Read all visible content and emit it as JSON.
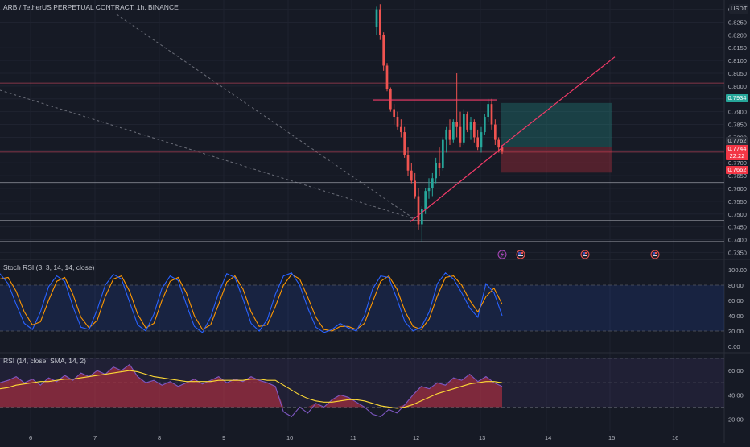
{
  "header": {
    "symbol_title": "ARB / TetherUS PERPETUAL CONTRACT, 1h, BINANCE",
    "currency": "USDT"
  },
  "price_tags": {
    "target": "0.7934",
    "last": "0.7762",
    "current": "0.7744",
    "countdown": "22:22",
    "stop": "0.7662"
  },
  "colors": {
    "background": "#161a25",
    "up": "#26a69a",
    "down": "#ef5350",
    "trendline": "#f23a68",
    "stoch_k": "#2962ff",
    "stoch_d": "#ff9800",
    "rsi_line": "#7e57c2",
    "rsi_ma": "#fdd835"
  },
  "event_icons": [
    "lightning-icon",
    "flag-us-icon",
    "flag-us-icon",
    "flag-us-icon"
  ],
  "chart_data": [
    {
      "type": "candlestick",
      "title": "ARB / TetherUS PERPETUAL CONTRACT, 1h, BINANCE",
      "x_ticks": [
        "6",
        "7",
        "8",
        "9",
        "10",
        "11",
        "12",
        "13",
        "14",
        "15",
        "16"
      ],
      "ylim": [
        0.7345,
        0.8305
      ],
      "y_ticks": [
        "0.8300",
        "0.8250",
        "0.8200",
        "0.8150",
        "0.8100",
        "0.8050",
        "0.8000",
        "0.7950",
        "0.7900",
        "0.7850",
        "0.7800",
        "0.7750",
        "0.7700",
        "0.7650",
        "0.7600",
        "0.7550",
        "0.7500",
        "0.7450",
        "0.7400",
        "0.7350"
      ],
      "candles_ohlc": [
        [
          0.823,
          0.831,
          0.82,
          0.83
        ],
        [
          0.83,
          0.832,
          0.818,
          0.82
        ],
        [
          0.82,
          0.821,
          0.806,
          0.808
        ],
        [
          0.808,
          0.809,
          0.798,
          0.799
        ],
        [
          0.799,
          0.7995,
          0.79,
          0.791
        ],
        [
          0.791,
          0.793,
          0.785,
          0.788
        ],
        [
          0.788,
          0.79,
          0.783,
          0.784
        ],
        [
          0.784,
          0.787,
          0.78,
          0.782
        ],
        [
          0.782,
          0.784,
          0.772,
          0.773
        ],
        [
          0.773,
          0.776,
          0.765,
          0.767
        ],
        [
          0.767,
          0.77,
          0.762,
          0.763
        ],
        [
          0.763,
          0.766,
          0.756,
          0.757
        ],
        [
          0.757,
          0.76,
          0.744,
          0.746
        ],
        [
          0.746,
          0.753,
          0.739,
          0.752
        ],
        [
          0.752,
          0.76,
          0.75,
          0.759
        ],
        [
          0.759,
          0.764,
          0.756,
          0.76
        ],
        [
          0.76,
          0.766,
          0.757,
          0.764
        ],
        [
          0.764,
          0.772,
          0.762,
          0.77
        ],
        [
          0.77,
          0.776,
          0.765,
          0.768
        ],
        [
          0.768,
          0.78,
          0.767,
          0.779
        ],
        [
          0.779,
          0.784,
          0.774,
          0.783
        ],
        [
          0.783,
          0.787,
          0.777,
          0.779
        ],
        [
          0.779,
          0.787,
          0.778,
          0.786
        ],
        [
          0.786,
          0.805,
          0.78,
          0.784
        ],
        [
          0.784,
          0.79,
          0.776,
          0.778
        ],
        [
          0.778,
          0.791,
          0.777,
          0.789
        ],
        [
          0.789,
          0.79,
          0.782,
          0.783
        ],
        [
          0.783,
          0.788,
          0.779,
          0.786
        ],
        [
          0.786,
          0.787,
          0.778,
          0.78
        ],
        [
          0.78,
          0.783,
          0.775,
          0.776
        ],
        [
          0.776,
          0.784,
          0.774,
          0.782
        ],
        [
          0.782,
          0.789,
          0.781,
          0.788
        ],
        [
          0.788,
          0.795,
          0.786,
          0.793
        ],
        [
          0.793,
          0.795,
          0.783,
          0.785
        ],
        [
          0.785,
          0.787,
          0.777,
          0.779
        ],
        [
          0.779,
          0.78,
          0.774,
          0.776
        ],
        [
          0.776,
          0.777,
          0.7735,
          0.7744
        ]
      ],
      "horizontal_lines": [
        0.8012,
        0.7742,
        0.7623,
        0.7475,
        0.7393
      ],
      "position_tool": {
        "entry": 0.7762,
        "target": 0.7934,
        "stop": 0.7662
      }
    },
    {
      "type": "line",
      "title": "Stoch RSI (3, 3, 14, 14, close)",
      "y_ticks": [
        "100.00",
        "80.00",
        "60.00",
        "40.00",
        "20.00",
        "0.00"
      ],
      "ylim": [
        0,
        100
      ],
      "bands": [
        20,
        80
      ],
      "series": [
        {
          "name": "K",
          "values": [
            95,
            82,
            55,
            30,
            22,
            45,
            78,
            92,
            85,
            52,
            25,
            22,
            48,
            80,
            94,
            88,
            58,
            28,
            20,
            42,
            76,
            92,
            86,
            55,
            26,
            18,
            38,
            70,
            95,
            90,
            62,
            30,
            20,
            35,
            68,
            92,
            96,
            80,
            50,
            25,
            18,
            22,
            30,
            24,
            20,
            40,
            75,
            92,
            90,
            62,
            32,
            20,
            25,
            45,
            82,
            96,
            88,
            70,
            50,
            38,
            82,
            70,
            40
          ]
        },
        {
          "name": "D",
          "values": [
            88,
            90,
            72,
            45,
            28,
            32,
            60,
            85,
            90,
            68,
            38,
            24,
            34,
            65,
            88,
            92,
            72,
            42,
            24,
            30,
            60,
            85,
            90,
            70,
            40,
            22,
            28,
            55,
            84,
            92,
            75,
            45,
            26,
            28,
            52,
            80,
            94,
            88,
            64,
            38,
            22,
            20,
            26,
            26,
            22,
            30,
            58,
            85,
            92,
            75,
            46,
            26,
            22,
            36,
            66,
            90,
            92,
            80,
            60,
            45,
            65,
            76,
            55
          ]
        }
      ]
    },
    {
      "type": "line",
      "title": "RSI (14, close, SMA, 14, 2)",
      "y_ticks": [
        "60.00",
        "40.00",
        "20.00"
      ],
      "ylim": [
        15,
        70
      ],
      "bands": [
        30,
        70
      ],
      "series": [
        {
          "name": "RSI",
          "values": [
            50,
            52,
            55,
            50,
            53,
            48,
            54,
            51,
            56,
            52,
            58,
            55,
            60,
            57,
            63,
            60,
            65,
            55,
            50,
            52,
            48,
            51,
            47,
            50,
            53,
            49,
            52,
            55,
            50,
            53,
            51,
            55,
            52,
            50,
            47,
            26,
            22,
            30,
            25,
            33,
            30,
            36,
            40,
            38,
            34,
            30,
            24,
            22,
            28,
            25,
            32,
            40,
            47,
            45,
            50,
            48,
            54,
            52,
            57,
            51,
            55,
            50,
            47
          ]
        },
        {
          "name": "MA",
          "values": [
            45,
            46,
            48,
            49,
            50,
            51,
            51,
            52,
            53,
            53,
            54,
            55,
            56,
            57,
            58,
            59,
            60,
            59,
            57,
            55,
            54,
            53,
            52,
            51,
            51,
            51,
            51,
            52,
            52,
            52,
            52,
            53,
            53,
            52,
            52,
            48,
            44,
            40,
            37,
            35,
            34,
            34,
            35,
            36,
            36,
            35,
            33,
            31,
            30,
            29,
            30,
            32,
            35,
            38,
            41,
            43,
            45,
            47,
            49,
            50,
            51,
            51,
            50
          ]
        }
      ]
    }
  ]
}
